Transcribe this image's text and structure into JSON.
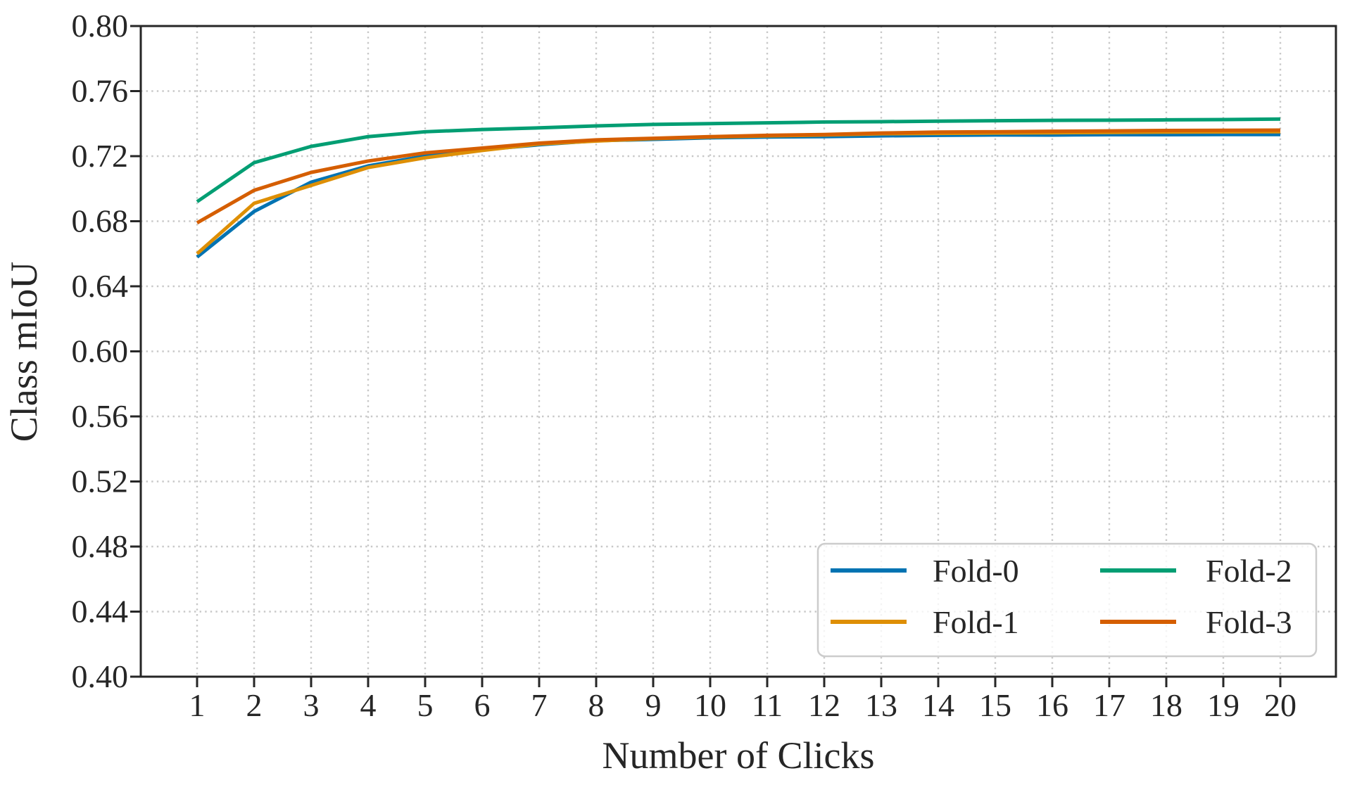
{
  "chart_data": {
    "type": "line",
    "title": "",
    "xlabel": "Number of Clicks",
    "ylabel": "Class mIoU",
    "xlim": [
      0,
      21
    ],
    "ylim": [
      0.4,
      0.8
    ],
    "xticks": [
      "1",
      "2",
      "3",
      "4",
      "5",
      "6",
      "7",
      "8",
      "9",
      "10",
      "11",
      "12",
      "13",
      "14",
      "15",
      "16",
      "17",
      "18",
      "19",
      "20"
    ],
    "yticks": [
      "0.40",
      "0.44",
      "0.48",
      "0.52",
      "0.56",
      "0.60",
      "0.64",
      "0.68",
      "0.72",
      "0.76",
      "0.80"
    ],
    "grid": "dotted",
    "legend_position": "lower right",
    "x": [
      1,
      2,
      3,
      4,
      5,
      6,
      7,
      8,
      9,
      10,
      11,
      12,
      13,
      14,
      15,
      16,
      17,
      18,
      19,
      20
    ],
    "series": [
      {
        "name": "Fold-0",
        "color": "#0173B2",
        "values": [
          0.658,
          0.686,
          0.704,
          0.714,
          0.72,
          0.724,
          0.727,
          0.7295,
          0.7303,
          0.7313,
          0.7318,
          0.732,
          0.7325,
          0.7328,
          0.733,
          0.733,
          0.7332,
          0.7332,
          0.7333,
          0.7333
        ]
      },
      {
        "name": "Fold-1",
        "color": "#DE8F05",
        "values": [
          0.66,
          0.691,
          0.702,
          0.713,
          0.719,
          0.7235,
          0.7275,
          0.7293,
          0.7308,
          0.7318,
          0.7325,
          0.733,
          0.7338,
          0.734,
          0.7342,
          0.7344,
          0.7346,
          0.7348,
          0.7349,
          0.735
        ]
      },
      {
        "name": "Fold-2",
        "color": "#029E73",
        "values": [
          0.692,
          0.716,
          0.726,
          0.732,
          0.735,
          0.7364,
          0.7374,
          0.7386,
          0.7395,
          0.74,
          0.7405,
          0.741,
          0.7412,
          0.7415,
          0.7418,
          0.742,
          0.7421,
          0.7423,
          0.7425,
          0.7428
        ]
      },
      {
        "name": "Fold-3",
        "color": "#D55E00",
        "values": [
          0.679,
          0.699,
          0.71,
          0.717,
          0.722,
          0.725,
          0.728,
          0.73,
          0.731,
          0.732,
          0.7328,
          0.7333,
          0.7342,
          0.7348,
          0.735,
          0.7353,
          0.7355,
          0.7358,
          0.7359,
          0.736
        ]
      }
    ],
    "style": {
      "grid_color": "#c8c8c8",
      "spine_color": "#262626",
      "text_color": "#262626",
      "legend_border_color": "#cccccc",
      "background": "#ffffff"
    }
  }
}
